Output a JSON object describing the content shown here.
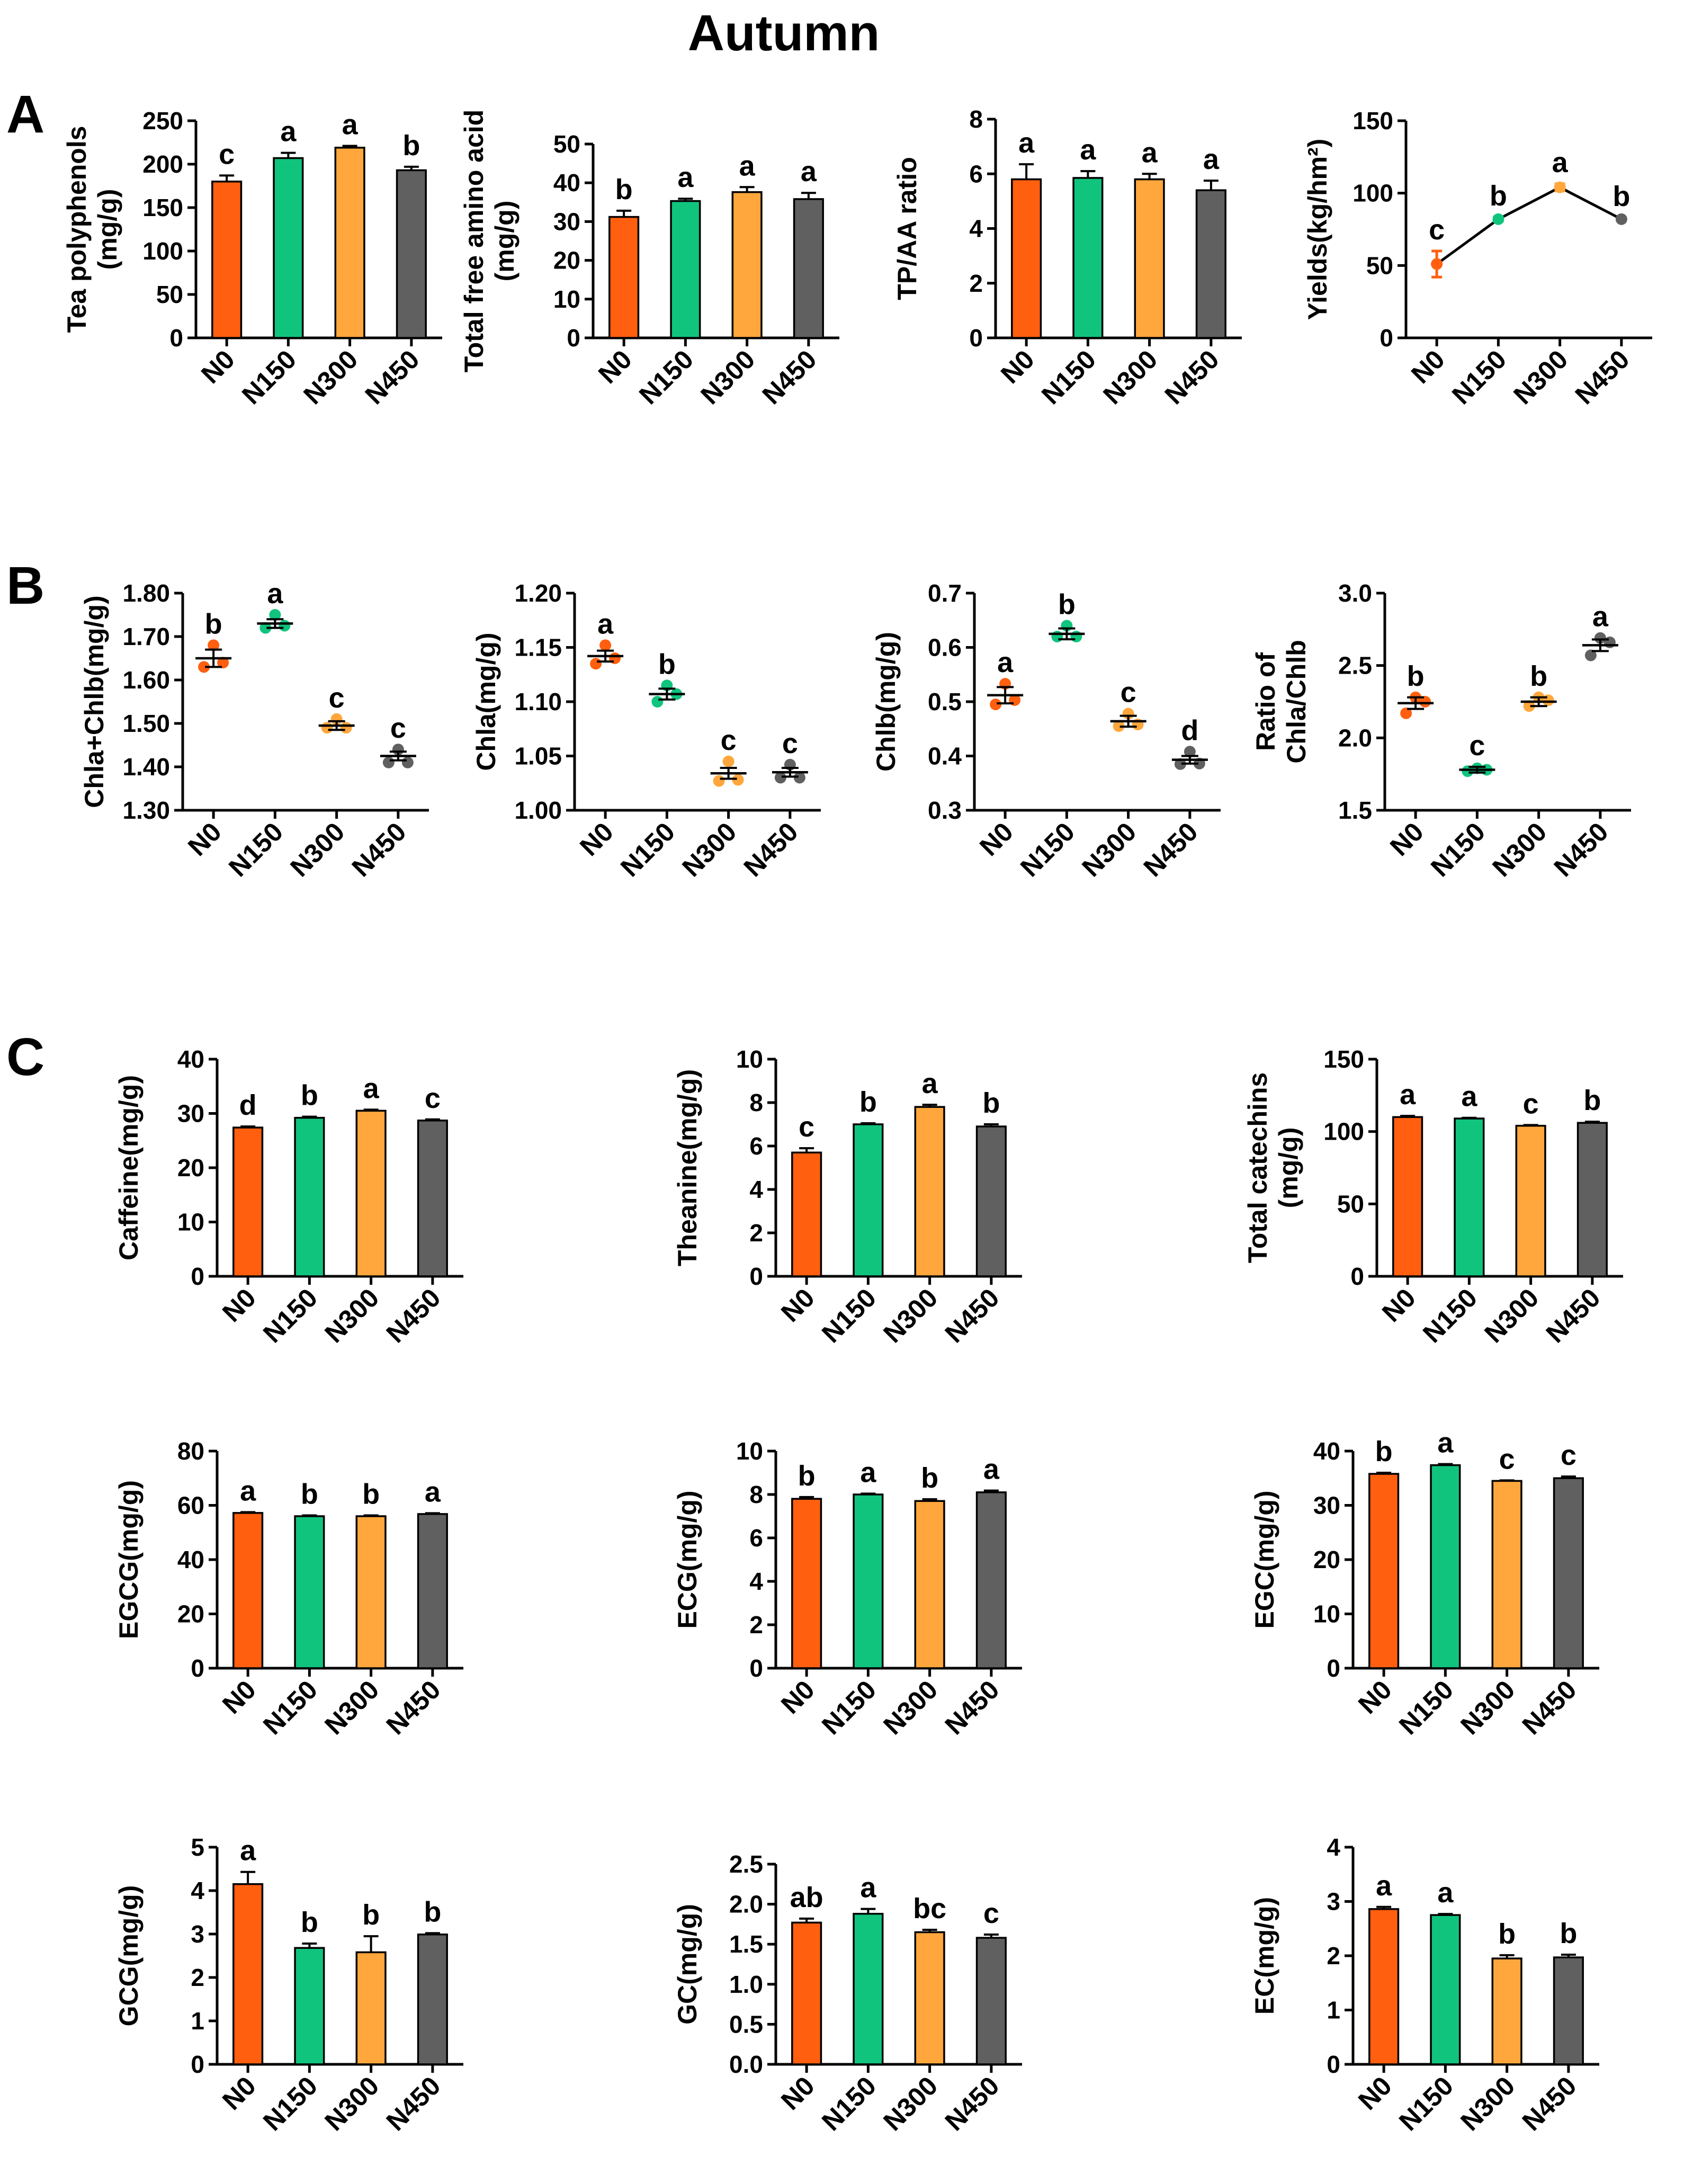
{
  "figure": {
    "title": "Autumn",
    "panel_labels": {
      "A": "A",
      "B": "B",
      "C": "C"
    },
    "category_labels": [
      "N0",
      "N150",
      "N300",
      "N450"
    ],
    "colors": {
      "N0": "#ff5f0f",
      "N150": "#10c47e",
      "N300": "#ffa73c",
      "N450": "#606060",
      "axis": "#000000"
    }
  },
  "chart_data": [
    {
      "id": "tp",
      "type": "bar",
      "ylabel": [
        "Tea polyphenols",
        "(mg/g)"
      ],
      "categories": [
        "N0",
        "N150",
        "N300",
        "N450"
      ],
      "values": [
        180,
        207,
        219,
        193
      ],
      "errors": [
        7,
        6,
        2,
        4
      ],
      "letters": [
        "c",
        "a",
        "a",
        "b"
      ],
      "ylim": [
        0,
        250
      ],
      "yticks": [
        0,
        50,
        100,
        150,
        200,
        250
      ]
    },
    {
      "id": "aa",
      "type": "bar",
      "ylabel": [
        "Total free amino acid",
        "(mg/g)"
      ],
      "categories": [
        "N0",
        "N150",
        "N300",
        "N450"
      ],
      "values": [
        31.2,
        35.3,
        37.6,
        35.8
      ],
      "errors": [
        1.6,
        0.6,
        1.3,
        1.6
      ],
      "letters": [
        "b",
        "a",
        "a",
        "a"
      ],
      "ylim": [
        0,
        50
      ],
      "yticks": [
        0,
        10,
        20,
        30,
        40,
        50
      ]
    },
    {
      "id": "tpaa",
      "type": "bar",
      "ylabel": [
        "TP/AA ratio"
      ],
      "categories": [
        "N0",
        "N150",
        "N300",
        "N450"
      ],
      "values": [
        5.8,
        5.85,
        5.8,
        5.4
      ],
      "errors": [
        0.55,
        0.25,
        0.2,
        0.35
      ],
      "letters": [
        "a",
        "a",
        "a",
        "a"
      ],
      "ylim": [
        0,
        8
      ],
      "yticks": [
        0,
        2,
        4,
        6,
        8
      ]
    },
    {
      "id": "yield",
      "type": "line",
      "ylabel": [
        "Yields(kg/hm²)"
      ],
      "categories": [
        "N0",
        "N150",
        "N300",
        "N450"
      ],
      "values": [
        51,
        82,
        104,
        82
      ],
      "errors": [
        9,
        1.5,
        2.5,
        1
      ],
      "letters": [
        "c",
        "b",
        "a",
        "b"
      ],
      "ylim": [
        0,
        150
      ],
      "yticks": [
        0,
        50,
        100,
        150
      ]
    },
    {
      "id": "chlab",
      "type": "scatter",
      "ylabel": [
        "Chla+Chlb(mg/g)"
      ],
      "categories": [
        "N0",
        "N150",
        "N300",
        "N450"
      ],
      "values": [
        1.65,
        1.73,
        1.495,
        1.425
      ],
      "errors": [
        0.02,
        0.01,
        0.01,
        0.01
      ],
      "points": [
        [
          1.63,
          1.64,
          1.68
        ],
        [
          1.72,
          1.725,
          1.75
        ],
        [
          1.49,
          1.49,
          1.51
        ],
        [
          1.41,
          1.41,
          1.44
        ]
      ],
      "letters": [
        "b",
        "a",
        "c",
        "c"
      ],
      "ylim": [
        1.3,
        1.8
      ],
      "yticks": [
        1.3,
        1.4,
        1.5,
        1.6,
        1.7,
        1.8
      ]
    },
    {
      "id": "chla",
      "type": "scatter",
      "ylabel": [
        "Chla(mg/g)"
      ],
      "categories": [
        "N0",
        "N150",
        "N300",
        "N450"
      ],
      "values": [
        1.142,
        1.107,
        1.034,
        1.035
      ],
      "errors": [
        0.005,
        0.005,
        0.005,
        0.004
      ],
      "points": [
        [
          1.135,
          1.14,
          1.152
        ],
        [
          1.1,
          1.107,
          1.115
        ],
        [
          1.027,
          1.028,
          1.045
        ],
        [
          1.03,
          1.03,
          1.042
        ]
      ],
      "letters": [
        "a",
        "b",
        "c",
        "c"
      ],
      "ylim": [
        1.0,
        1.2
      ],
      "yticks": [
        1.0,
        1.05,
        1.1,
        1.15,
        1.2
      ]
    },
    {
      "id": "chlb",
      "type": "scatter",
      "ylabel": [
        "Chlb(mg/g)"
      ],
      "categories": [
        "N0",
        "N150",
        "N300",
        "N450"
      ],
      "values": [
        0.512,
        0.625,
        0.464,
        0.393
      ],
      "errors": [
        0.015,
        0.01,
        0.01,
        0.007
      ],
      "points": [
        [
          0.495,
          0.503,
          0.533
        ],
        [
          0.62,
          0.62,
          0.64
        ],
        [
          0.455,
          0.458,
          0.478
        ],
        [
          0.385,
          0.386,
          0.408
        ]
      ],
      "letters": [
        "a",
        "b",
        "c",
        "d"
      ],
      "ylim": [
        0.3,
        0.7
      ],
      "yticks": [
        0.3,
        0.4,
        0.5,
        0.6,
        0.7
      ]
    },
    {
      "id": "ratio",
      "type": "scatter",
      "ylabel": [
        "Ratio of",
        "Chla/Chlb"
      ],
      "categories": [
        "N0",
        "N150",
        "N300",
        "N450"
      ],
      "values": [
        2.24,
        1.78,
        2.25,
        2.64
      ],
      "errors": [
        0.04,
        0.02,
        0.03,
        0.04
      ],
      "points": [
        [
          2.17,
          2.25,
          2.28
        ],
        [
          1.77,
          1.78,
          1.79
        ],
        [
          2.22,
          2.26,
          2.28
        ],
        [
          2.57,
          2.66,
          2.69
        ]
      ],
      "letters": [
        "b",
        "c",
        "b",
        "a"
      ],
      "ylim": [
        1.5,
        3.0
      ],
      "yticks": [
        1.5,
        2.0,
        2.5,
        3.0
      ]
    },
    {
      "id": "caffeine",
      "type": "bar",
      "ylabel": [
        "Caffeine(mg/g)"
      ],
      "categories": [
        "N0",
        "N150",
        "N300",
        "N450"
      ],
      "values": [
        27.4,
        29.2,
        30.5,
        28.7
      ],
      "errors": [
        0.2,
        0.2,
        0.2,
        0.2
      ],
      "letters": [
        "d",
        "b",
        "a",
        "c"
      ],
      "ylim": [
        0,
        40
      ],
      "yticks": [
        0,
        10,
        20,
        30,
        40
      ]
    },
    {
      "id": "theanine",
      "type": "bar",
      "ylabel": [
        "Theanine(mg/g)"
      ],
      "categories": [
        "N0",
        "N150",
        "N300",
        "N450"
      ],
      "values": [
        5.7,
        7.0,
        7.8,
        6.9
      ],
      "errors": [
        0.2,
        0.05,
        0.1,
        0.1
      ],
      "letters": [
        "c",
        "b",
        "a",
        "b"
      ],
      "ylim": [
        0,
        10
      ],
      "yticks": [
        0,
        2,
        4,
        6,
        8,
        10
      ]
    },
    {
      "id": "catechins",
      "type": "bar",
      "ylabel": [
        "Total catechins",
        "(mg/g)"
      ],
      "categories": [
        "N0",
        "N150",
        "N300",
        "N450"
      ],
      "values": [
        110,
        109,
        104,
        106
      ],
      "errors": [
        0.8,
        0.5,
        0.5,
        0.8
      ],
      "letters": [
        "a",
        "a",
        "c",
        "b"
      ],
      "ylim": [
        0,
        150
      ],
      "yticks": [
        0,
        50,
        100,
        150
      ]
    },
    {
      "id": "egcg",
      "type": "bar",
      "ylabel": [
        "EGCG(mg/g)"
      ],
      "categories": [
        "N0",
        "N150",
        "N300",
        "N450"
      ],
      "values": [
        57.2,
        56.0,
        56.0,
        56.8
      ],
      "errors": [
        0.3,
        0.3,
        0.3,
        0.3
      ],
      "letters": [
        "a",
        "b",
        "b",
        "a"
      ],
      "ylim": [
        0,
        80
      ],
      "yticks": [
        0,
        20,
        40,
        60,
        80
      ]
    },
    {
      "id": "ecg",
      "type": "bar",
      "ylabel": [
        "ECG(mg/g)"
      ],
      "categories": [
        "N0",
        "N150",
        "N300",
        "N450"
      ],
      "values": [
        7.8,
        8.0,
        7.7,
        8.1
      ],
      "errors": [
        0.08,
        0.04,
        0.08,
        0.08
      ],
      "letters": [
        "b",
        "a",
        "b",
        "a"
      ],
      "ylim": [
        0,
        10
      ],
      "yticks": [
        0,
        2,
        4,
        6,
        8,
        10
      ]
    },
    {
      "id": "egc",
      "type": "bar",
      "ylabel": [
        "EGC(mg/g)"
      ],
      "categories": [
        "N0",
        "N150",
        "N300",
        "N450"
      ],
      "values": [
        35.8,
        37.4,
        34.5,
        35.0
      ],
      "errors": [
        0.2,
        0.2,
        0.1,
        0.3
      ],
      "letters": [
        "b",
        "a",
        "c",
        "c"
      ],
      "ylim": [
        0,
        40
      ],
      "yticks": [
        0,
        10,
        20,
        30,
        40
      ]
    },
    {
      "id": "gcg",
      "type": "bar",
      "ylabel": [
        "GCG(mg/g)"
      ],
      "categories": [
        "N0",
        "N150",
        "N300",
        "N450"
      ],
      "values": [
        4.15,
        2.68,
        2.58,
        2.99
      ],
      "errors": [
        0.28,
        0.1,
        0.37,
        0.03
      ],
      "letters": [
        "a",
        "b",
        "b",
        "b"
      ],
      "ylim": [
        0,
        5
      ],
      "yticks": [
        0,
        1,
        2,
        3,
        4,
        5
      ]
    },
    {
      "id": "gc",
      "type": "bar",
      "ylabel": [
        "GC(mg/g)"
      ],
      "categories": [
        "N0",
        "N150",
        "N300",
        "N450"
      ],
      "values": [
        1.77,
        1.88,
        1.65,
        1.58
      ],
      "errors": [
        0.05,
        0.06,
        0.03,
        0.04
      ],
      "letters": [
        "ab",
        "a",
        "bc",
        "c"
      ],
      "ylim": [
        0,
        2.5
      ],
      "yticks": [
        0.0,
        0.5,
        1.0,
        1.5,
        2.0,
        2.5
      ]
    },
    {
      "id": "ec",
      "type": "bar",
      "ylabel": [
        "EC(mg/g)"
      ],
      "categories": [
        "N0",
        "N150",
        "N300",
        "N450"
      ],
      "values": [
        2.86,
        2.75,
        1.95,
        1.97
      ],
      "errors": [
        0.04,
        0.02,
        0.06,
        0.05
      ],
      "letters": [
        "a",
        "a",
        "b",
        "b"
      ],
      "ylim": [
        0,
        4
      ],
      "yticks": [
        0,
        1,
        2,
        3,
        4
      ]
    }
  ]
}
